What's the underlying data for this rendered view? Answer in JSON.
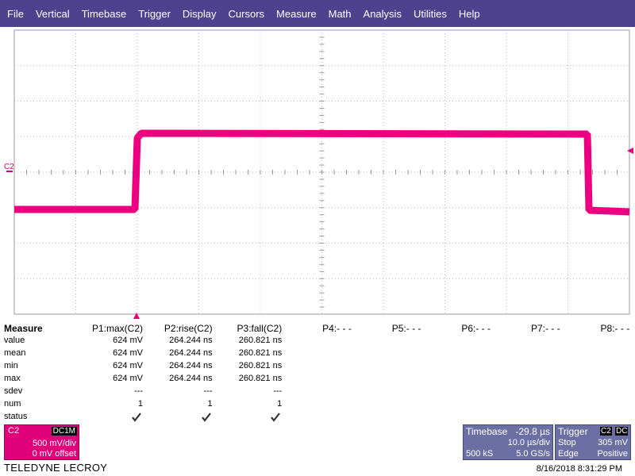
{
  "menu": [
    "File",
    "Vertical",
    "Timebase",
    "Trigger",
    "Display",
    "Cursors",
    "Measure",
    "Math",
    "Analysis",
    "Utilities",
    "Help"
  ],
  "scope": {
    "channel_marker": "C2"
  },
  "measure": {
    "title": "Measure",
    "columns": [
      "P1:max(C2)",
      "P2:rise(C2)",
      "P3:fall(C2)",
      "P4:- - -",
      "P5:- - -",
      "P6:- - -",
      "P7:- - -",
      "P8:- - -"
    ],
    "rows": [
      {
        "label": "value",
        "cells": [
          "624 mV",
          "264.244 ns",
          "260.821 ns"
        ]
      },
      {
        "label": "mean",
        "cells": [
          "624 mV",
          "264.244 ns",
          "260.821 ns"
        ]
      },
      {
        "label": "min",
        "cells": [
          "624 mV",
          "264.244 ns",
          "260.821 ns"
        ]
      },
      {
        "label": "max",
        "cells": [
          "624 mV",
          "264.244 ns",
          "260.821 ns"
        ]
      },
      {
        "label": "sdev",
        "cells": [
          "---",
          "---",
          "---"
        ]
      },
      {
        "label": "num",
        "cells": [
          "1",
          "1",
          "1"
        ]
      },
      {
        "label": "status",
        "cells": []
      }
    ]
  },
  "channel": {
    "name": "C2",
    "coupling": "DC1M",
    "scale": "500 mV/div",
    "offset": "0 mV offset"
  },
  "brand": "TELEDYNE LECROY",
  "timebase": {
    "title": "Timebase",
    "delay": "-29.8 µs",
    "scale": "10.0 µs/div",
    "samples": "500 kS",
    "rate": "5.0 GS/s"
  },
  "trigger": {
    "title": "Trigger",
    "source": "C2",
    "coupling": "DC",
    "mode": "Stop",
    "level": "305 mV",
    "type": "Edge",
    "slope": "Positive"
  },
  "timestamp": "8/16/2018 8:31:29 PM"
}
